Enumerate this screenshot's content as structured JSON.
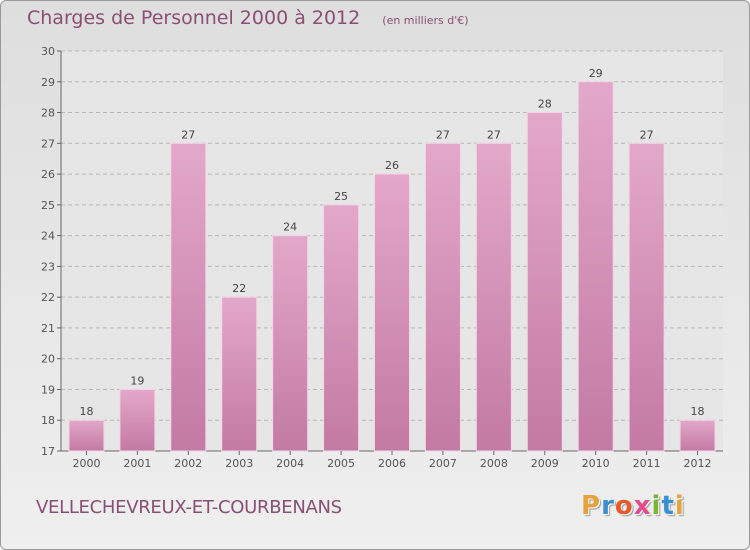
{
  "title": "Charges de Personnel 2000 à 2012",
  "subtitle": "(en milliers d'€)",
  "commune": "VELLECHEVREUX-ET-COURBENANS",
  "brand": [
    "P",
    "r",
    "o",
    "x",
    "i",
    "t",
    "i"
  ],
  "brand_colors": [
    "#e8a23c",
    "#3b8fd1",
    "#e85a2c",
    "#e84a8c",
    "#7ab532",
    "#3b8fd1",
    "#e8a23c"
  ],
  "colors": {
    "bar": "#c37aa3",
    "bar_light": "#e3a8c9",
    "title": "#8a4f74"
  },
  "chart_data": {
    "type": "bar",
    "title": "Charges de Personnel 2000 à 2012",
    "categories": [
      "2000",
      "2001",
      "2002",
      "2003",
      "2004",
      "2005",
      "2006",
      "2007",
      "2008",
      "2009",
      "2010",
      "2011",
      "2012"
    ],
    "values": [
      18,
      19,
      27,
      22,
      24,
      25,
      26,
      27,
      27,
      28,
      29,
      27,
      18
    ],
    "ylim": [
      17,
      30
    ],
    "yticks": [
      17,
      18,
      19,
      20,
      21,
      22,
      23,
      24,
      25,
      26,
      27,
      28,
      29,
      30
    ],
    "grid": true,
    "xlabel": "",
    "ylabel": ""
  }
}
